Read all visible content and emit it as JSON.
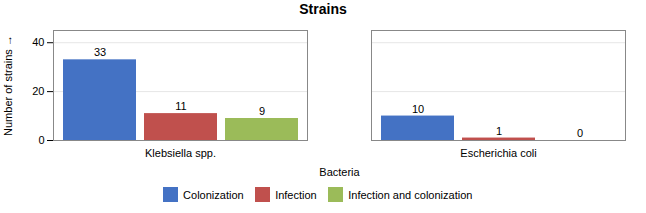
{
  "chart_data": {
    "type": "bar",
    "title": "Strains",
    "xlabel": "Bacteria",
    "ylabel": "Number of strains",
    "categories": [
      "Klebsiella spp.",
      "Escherichia coli"
    ],
    "series": [
      {
        "name": "Colonization",
        "color": "#4472C4",
        "values": [
          33,
          10
        ]
      },
      {
        "name": "Infection",
        "color": "#C0504D",
        "values": [
          11,
          1
        ]
      },
      {
        "name": "Infection and colonization",
        "color": "#9BBB59",
        "values": [
          9,
          0
        ]
      }
    ],
    "ylim": [
      0,
      45
    ],
    "yticks": [
      0,
      20,
      40
    ],
    "grid": true,
    "data_labels": true,
    "legend": "bottom"
  }
}
